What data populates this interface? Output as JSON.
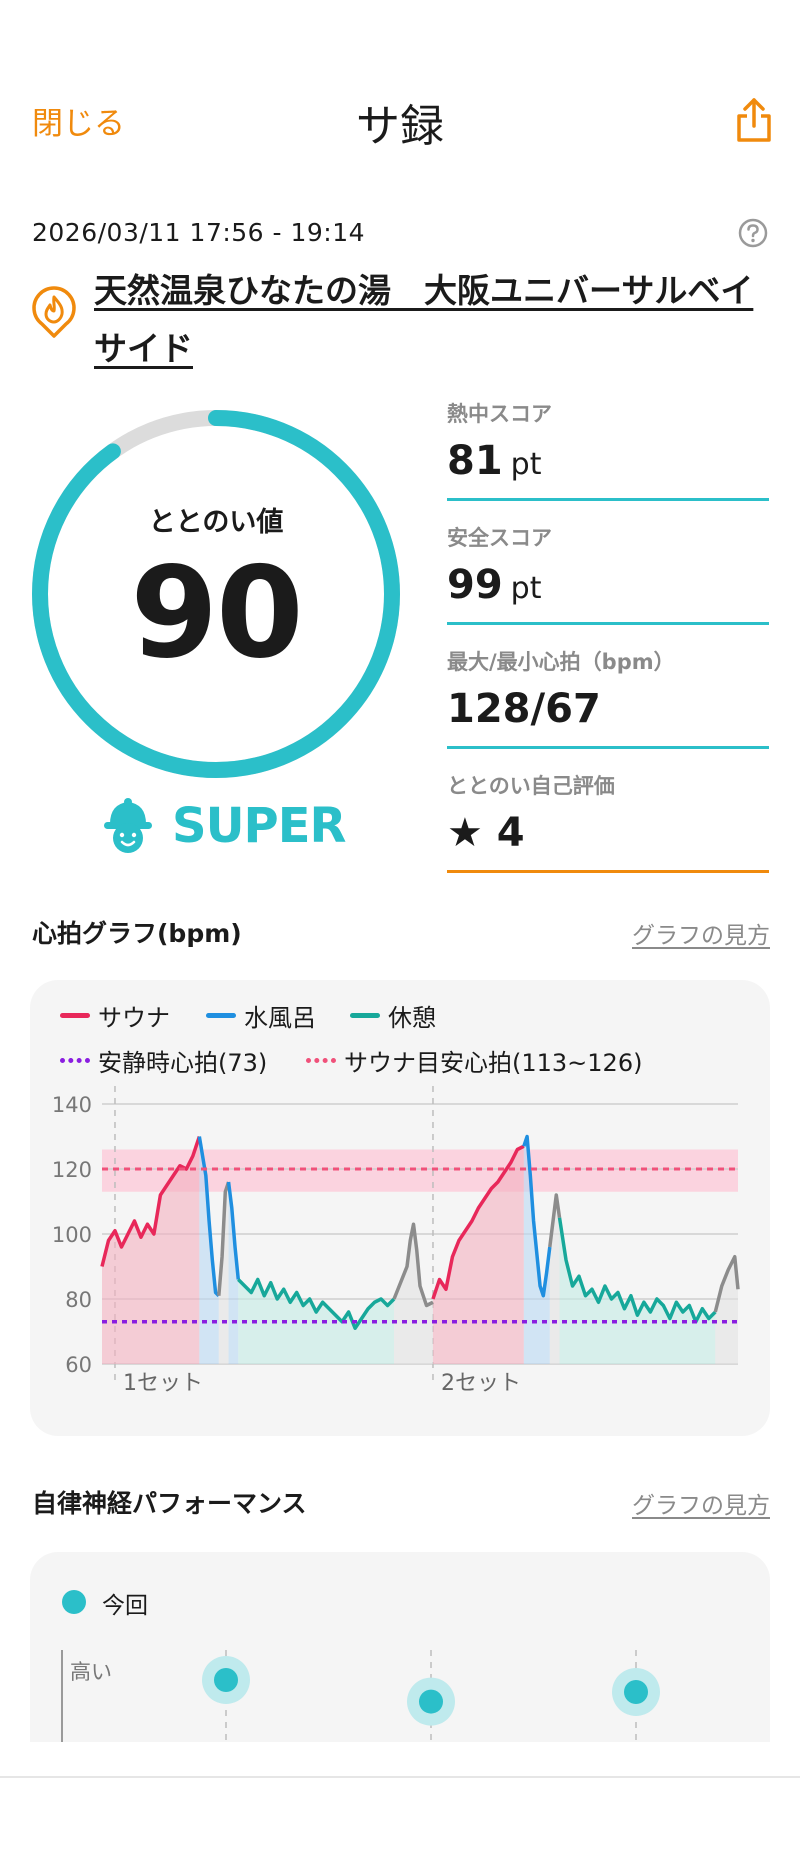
{
  "header": {
    "close_label": "閉じる",
    "title": "サ録",
    "share_icon": "share-icon"
  },
  "session": {
    "time_range": "2026/03/11 17:56 - 19:14",
    "help_icon": "help-circle-icon",
    "facility_icon": "sauna-flame-pin-icon",
    "facility_name": "天然温泉ひなたの湯　大阪ユニバーサルベイサイド"
  },
  "score": {
    "label": "ととのい値",
    "value": "90",
    "gauge_fraction": 0.9,
    "rank": "SUPER",
    "rank_icon": "sauna-hat-face-icon",
    "accent_color": "#2bbfc9"
  },
  "stats": [
    {
      "label": "熱中スコア",
      "value": "81",
      "unit": "pt"
    },
    {
      "label": "安全スコア",
      "value": "99",
      "unit": "pt"
    },
    {
      "label": "最大/最小心拍（bpm）",
      "value": "128/67",
      "unit": ""
    },
    {
      "label": "ととのい自己評価",
      "value": "★ 4",
      "unit": ""
    }
  ],
  "heart_section": {
    "title": "心拍グラフ(bpm)",
    "link": "グラフの見方"
  },
  "chart_data": {
    "type": "line",
    "title": "心拍グラフ(bpm)",
    "ylim": [
      60,
      140
    ],
    "yticks": [
      "60",
      "80",
      "100",
      "120",
      "140"
    ],
    "set_labels": [
      "1セット",
      "2セット"
    ],
    "legend": {
      "sauna": "サウナ",
      "cold_bath": "水風呂",
      "rest": "休憩",
      "resting_hr": "安静時心拍(73)",
      "target_hr": "サウナ目安心拍(113~126)"
    },
    "colors": {
      "sauna": "#e8285a",
      "cold_bath": "#1f8fe0",
      "rest": "#17a89a",
      "other": "#8c8c8c",
      "resting": "#8a1ee0",
      "target": "#f0517a"
    },
    "resting_hr": 73,
    "target_band": [
      113,
      126
    ],
    "target_line": 120,
    "series": [
      {
        "name": "サウナ",
        "phase": "sauna",
        "t": [
          0,
          2,
          4,
          6,
          8,
          10,
          12,
          14,
          16,
          18,
          20,
          22,
          24,
          26,
          28,
          30
        ],
        "values": [
          90,
          98,
          101,
          96,
          100,
          104,
          99,
          103,
          100,
          112,
          115,
          118,
          121,
          120,
          124,
          130
        ]
      },
      {
        "name": "水風呂",
        "phase": "cold_bath",
        "t": [
          30,
          31,
          32,
          33,
          34,
          35,
          36
        ],
        "values": [
          130,
          124,
          118,
          104,
          92,
          82,
          81
        ]
      },
      {
        "name": "",
        "phase": "other",
        "t": [
          36,
          37,
          38,
          39
        ],
        "values": [
          81,
          93,
          113,
          116
        ]
      },
      {
        "name": "水風呂",
        "phase": "cold_bath",
        "t": [
          39,
          40,
          41,
          42
        ],
        "values": [
          116,
          108,
          96,
          86
        ]
      },
      {
        "name": "休憩",
        "phase": "rest",
        "t": [
          42,
          44,
          46,
          48,
          50,
          52,
          54,
          56,
          58,
          60,
          62,
          64,
          66,
          68,
          70,
          72,
          74,
          76,
          78,
          80,
          82,
          84,
          86,
          88,
          90
        ],
        "values": [
          86,
          84,
          82,
          86,
          81,
          85,
          80,
          83,
          79,
          82,
          78,
          80,
          76,
          79,
          77,
          75,
          73,
          76,
          71,
          74,
          77,
          79,
          80,
          78,
          80
        ]
      },
      {
        "name": "",
        "phase": "other",
        "t": [
          90,
          92,
          94,
          95,
          96,
          97,
          98,
          100,
          102
        ],
        "values": [
          80,
          85,
          90,
          98,
          103,
          95,
          84,
          78,
          79
        ]
      },
      {
        "name": "サウナ",
        "phase": "sauna",
        "t": [
          102,
          104,
          106,
          108,
          110,
          112,
          114,
          116,
          118,
          120,
          122,
          124,
          126,
          128,
          130
        ],
        "values": [
          80,
          86,
          83,
          93,
          98,
          101,
          104,
          108,
          111,
          114,
          116,
          119,
          122,
          126,
          127
        ]
      },
      {
        "name": "水風呂",
        "phase": "cold_bath",
        "t": [
          130,
          131,
          132,
          133,
          134,
          135,
          136,
          137,
          138
        ],
        "values": [
          127,
          130,
          118,
          104,
          94,
          84,
          81,
          88,
          96
        ]
      },
      {
        "name": "",
        "phase": "other",
        "t": [
          138,
          139,
          140,
          141
        ],
        "values": [
          96,
          104,
          112,
          105
        ]
      },
      {
        "name": "休憩",
        "phase": "rest",
        "t": [
          141,
          143,
          145,
          147,
          149,
          151,
          153,
          155,
          157,
          159,
          161,
          163,
          165,
          167,
          169,
          171,
          173,
          175,
          177,
          179,
          181,
          183,
          185,
          187,
          189
        ],
        "values": [
          105,
          92,
          84,
          87,
          81,
          83,
          79,
          84,
          80,
          82,
          77,
          81,
          75,
          79,
          76,
          80,
          78,
          74,
          79,
          76,
          78,
          73,
          77,
          74,
          76
        ]
      },
      {
        "name": "",
        "phase": "other",
        "t": [
          189,
          191,
          193,
          195,
          196
        ],
        "values": [
          76,
          84,
          89,
          93,
          83
        ]
      }
    ]
  },
  "anp_section": {
    "title": "自律神経パフォーマンス",
    "link": "グラフの見方"
  },
  "anp_chart": {
    "legend": "今回",
    "axis_high_label": "高い",
    "levels": [
      0.8,
      0.62,
      0.7
    ]
  }
}
